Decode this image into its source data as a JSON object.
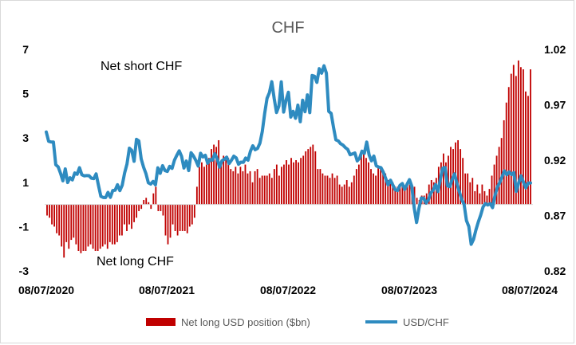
{
  "chart_data": {
    "type": "bar+line",
    "title": "CHF",
    "annotations": [
      "Net short CHF",
      "Net long CHF"
    ],
    "x_tick_labels": [
      "08/07/2020",
      "08/07/2021",
      "08/07/2022",
      "08/07/2023",
      "08/07/2024"
    ],
    "y_left": {
      "ticks": [
        7,
        5,
        3,
        1,
        -1,
        -3
      ],
      "ylim": [
        -3,
        7
      ]
    },
    "y_right": {
      "ticks": [
        "1.02",
        "0.97",
        "0.92",
        "0.87",
        "0.82"
      ],
      "ylim": [
        0.82,
        1.02
      ]
    },
    "grid": false,
    "legend_position": "bottom",
    "series": [
      {
        "name": "Net long USD position ($bn)",
        "kind": "bar",
        "axis": "left",
        "color": "#c00000",
        "values": [
          -0.5,
          -0.6,
          -0.9,
          -1.0,
          -1.3,
          -1.4,
          -1.9,
          -2.4,
          -1.7,
          -2.0,
          -1.6,
          -1.5,
          -1.8,
          -2.1,
          -2.2,
          -2.1,
          -2.1,
          -1.9,
          -1.8,
          -2.0,
          -2.1,
          -2.1,
          -2.0,
          -1.9,
          -1.8,
          -2.0,
          -1.7,
          -1.8,
          -1.8,
          -1.7,
          -1.4,
          -1.4,
          -0.9,
          -1.2,
          -0.9,
          -1.1,
          -0.8,
          -0.6,
          -0.3,
          -0.2,
          0.2,
          0.3,
          0.1,
          -0.2,
          0.5,
          0.8,
          -0.3,
          -0.3,
          -0.5,
          -1.4,
          -1.8,
          -1.5,
          -0.9,
          -1.2,
          -1.4,
          -1.2,
          -1.2,
          -1.2,
          -1.3,
          -1.0,
          -0.9,
          -0.6,
          0.8,
          1.7,
          1.9,
          1.7,
          1.8,
          2.1,
          2.5,
          2.7,
          2.6,
          2.9,
          1.8,
          2.2,
          2.0,
          2.1,
          1.6,
          1.5,
          1.7,
          1.4,
          1.7,
          1.5,
          1.8,
          1.4,
          1.5,
          1.0,
          1.5,
          1.6,
          1.2,
          1.3,
          1.3,
          1.3,
          1.4,
          1.2,
          1.6,
          1.8,
          1.3,
          1.7,
          1.8,
          2.0,
          1.8,
          2.1,
          1.9,
          2.0,
          1.9,
          2.1,
          2.2,
          2.4,
          2.5,
          2.6,
          2.7,
          2.4,
          1.6,
          1.6,
          1.4,
          1.3,
          1.3,
          1.2,
          1.4,
          1.2,
          1.3,
          0.9,
          0.8,
          0.9,
          1.1,
          0.8,
          1.0,
          1.3,
          1.6,
          1.8,
          2.3,
          2.3,
          2.1,
          1.9,
          1.6,
          1.4,
          1.3,
          1.7,
          1.7,
          1.5,
          1.4,
          1.1,
          1.0,
          1.0,
          0.8,
          0.8,
          0.9,
          0.9,
          0.7,
          0.9,
          0.9,
          0.6,
          0.8,
          0.3,
          0.2,
          0.4,
          0.4,
          0.5,
          0.9,
          1.1,
          1.0,
          1.2,
          1.7,
          1.9,
          2.3,
          1.9,
          2.2,
          2.6,
          2.5,
          2.8,
          2.9,
          2.5,
          2.1,
          1.4,
          1.4,
          1.0,
          1.2,
          0.6,
          0.9,
          0.5,
          0.9,
          0.6,
          0.4,
          0.7,
          1.3,
          1.8,
          2.2,
          2.6,
          3.0,
          3.8,
          4.6,
          5.3,
          5.9,
          6.3,
          5.8,
          6.5,
          6.2,
          6.1,
          5.1,
          4.9,
          6.1
        ]
      },
      {
        "name": "USD/CHF",
        "kind": "line",
        "axis": "right",
        "color": "#2e8bc0",
        "values": [
          0.9454,
          0.937,
          0.9364,
          0.9364,
          0.9159,
          0.914,
          0.9082,
          0.9013,
          0.9121,
          0.8998,
          0.9041,
          0.9022,
          0.9084,
          0.9072,
          0.9132,
          0.9068,
          0.9058,
          0.9061,
          0.906,
          0.9037,
          0.9033,
          0.9076,
          0.8971,
          0.8873,
          0.8863,
          0.8862,
          0.8909,
          0.8864,
          0.8926,
          0.8928,
          0.8978,
          0.8925,
          0.8974,
          0.9084,
          0.9165,
          0.9308,
          0.9288,
          0.919,
          0.9388,
          0.9373,
          0.921,
          0.9136,
          0.9078,
          0.8996,
          0.8984,
          0.9008,
          0.8977,
          0.9131,
          0.9081,
          0.915,
          0.9106,
          0.9098,
          0.9144,
          0.9126,
          0.92,
          0.9244,
          0.9284,
          0.9235,
          0.9129,
          0.9192,
          0.9106,
          0.9267,
          0.9238,
          0.9198,
          0.9147,
          0.9262,
          0.9229,
          0.9244,
          0.9172,
          0.9205,
          0.92,
          0.9258,
          0.9213,
          0.9137,
          0.9194,
          0.9208,
          0.9227,
          0.9169,
          0.9199,
          0.9236,
          0.9221,
          0.9163,
          0.9182,
          0.918,
          0.9219,
          0.92,
          0.928,
          0.933,
          0.9294,
          0.9306,
          0.9353,
          0.9459,
          0.9621,
          0.9758,
          0.981,
          0.9908,
          0.9758,
          0.963,
          0.9689,
          0.9907,
          0.9634,
          0.9741,
          0.9813,
          0.9589,
          0.9641,
          0.9578,
          0.9697,
          0.9547,
          0.9741,
          0.9637,
          0.9789,
          0.9629,
          0.9964,
          0.9958,
          0.9902,
          1.0026,
          0.9985,
          1.0052,
          0.9986,
          0.964,
          0.9622,
          0.9497,
          0.9383,
          0.9374,
          0.9348,
          0.9336,
          0.9313,
          0.9297,
          0.9249,
          0.9257,
          0.9265,
          0.9193,
          0.9218,
          0.9281,
          0.9262,
          0.9363,
          0.9248,
          0.9194,
          0.9237,
          0.9149,
          0.9138,
          0.9132,
          0.9091,
          0.9034,
          0.8977,
          0.9019,
          0.8975,
          0.8933,
          0.8925,
          0.8973,
          0.8989,
          0.8936,
          0.8983,
          0.9024,
          0.8963,
          0.8768,
          0.8637,
          0.8765,
          0.8858,
          0.8856,
          0.8812,
          0.8843,
          0.8903,
          0.893,
          0.898,
          0.8916,
          0.9027,
          0.9127,
          0.9134,
          0.8968,
          0.8961,
          0.9027,
          0.9076,
          0.8989,
          0.8916,
          0.8846,
          0.8803,
          0.8655,
          0.8601,
          0.844,
          0.8485,
          0.857,
          0.8642,
          0.8703,
          0.8777,
          0.8808,
          0.8795,
          0.8807,
          0.8771,
          0.8878,
          0.8956,
          0.8996,
          0.9048,
          0.9103,
          0.9068,
          0.9093,
          0.907,
          0.9088,
          0.8918,
          0.8994,
          0.9059,
          0.9002,
          0.895,
          0.8993,
          0.8994
        ]
      }
    ]
  }
}
